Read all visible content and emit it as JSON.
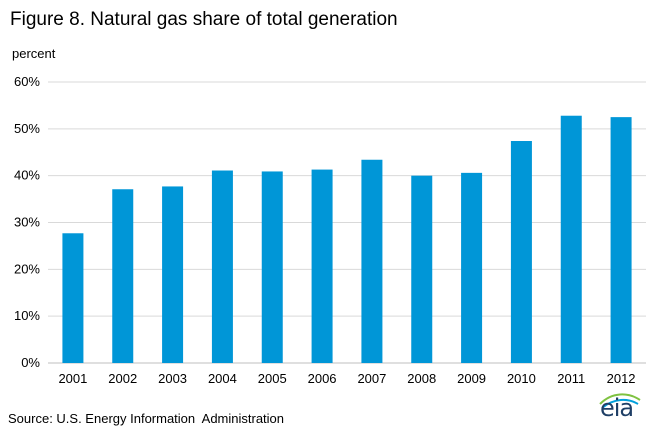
{
  "chart_data": {
    "type": "bar",
    "title": "Figure 8. Natural gas share of total generation",
    "ylabel": "percent",
    "xlabel": "",
    "categories": [
      "2001",
      "2002",
      "2003",
      "2004",
      "2005",
      "2006",
      "2007",
      "2008",
      "2009",
      "2010",
      "2011",
      "2012"
    ],
    "values": [
      27.7,
      37.1,
      37.7,
      41.1,
      40.9,
      41.3,
      43.4,
      40.0,
      40.6,
      47.4,
      52.8,
      52.5
    ],
    "ylim": [
      0,
      60
    ],
    "yticks": [
      "0%",
      "10%",
      "20%",
      "30%",
      "40%",
      "50%",
      "60%"
    ],
    "grid": true,
    "bar_color": "#0096d7",
    "grid_color": "#d9d9d9"
  },
  "source": "Source: U.S. Energy Information  Administration",
  "logo": {
    "text": "eia",
    "icon": "eia-logo-icon"
  }
}
